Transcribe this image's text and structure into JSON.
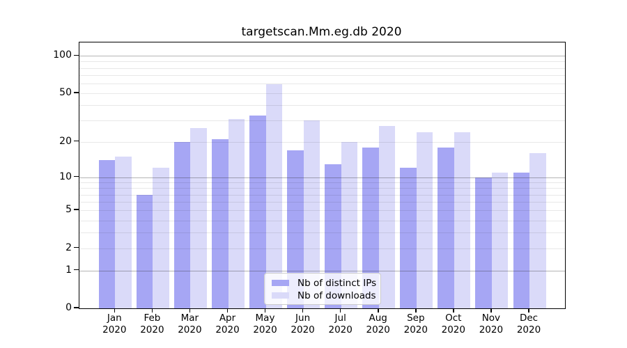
{
  "title": "targetscan.Mm.eg.db 2020",
  "chart_data": {
    "type": "bar",
    "title": "targetscan.Mm.eg.db 2020",
    "categories": [
      "Jan 2020",
      "Feb 2020",
      "Mar 2020",
      "Apr 2020",
      "May 2020",
      "Jun 2020",
      "Jul 2020",
      "Aug 2020",
      "Sep 2020",
      "Oct 2020",
      "Nov 2020",
      "Dec 2020"
    ],
    "series": [
      {
        "name": "Nb of distinct IPs",
        "color": "#a6a6f4",
        "values": [
          14,
          7,
          20,
          21,
          33,
          17,
          13,
          18,
          12,
          18,
          10,
          11
        ]
      },
      {
        "name": "Nb of downloads",
        "color": "#dadaf9",
        "values": [
          15,
          12,
          26,
          31,
          59,
          30,
          20,
          27,
          24,
          24,
          11,
          16
        ]
      }
    ],
    "xlabel": "",
    "ylabel": "",
    "yscale": "log1p",
    "ylim": [
      0,
      128
    ],
    "yticks": [
      0,
      1,
      2,
      5,
      10,
      20,
      50,
      100
    ],
    "grid_major": [
      1,
      10,
      100
    ],
    "grid_minor": [
      2,
      3,
      4,
      5,
      6,
      7,
      8,
      9,
      20,
      30,
      40,
      50,
      60,
      70,
      80,
      90
    ],
    "legend_position": "lower center",
    "colors": {
      "background": "#ffffff",
      "spine": "#000000",
      "grid_major": "#ababab",
      "grid_minor": "#ebebeb"
    }
  }
}
